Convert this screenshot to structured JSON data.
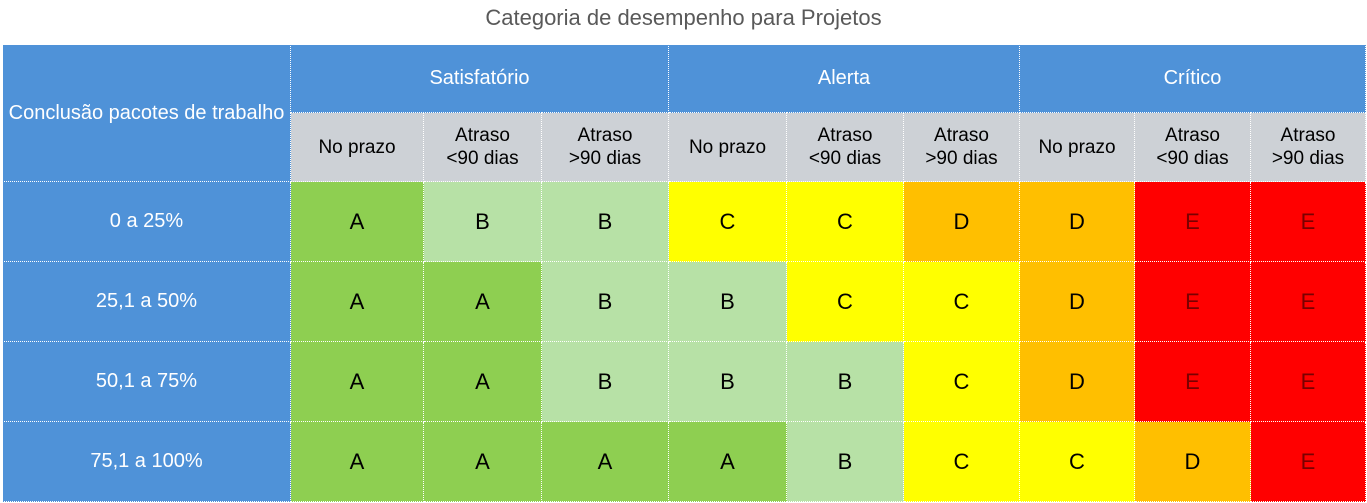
{
  "title": "Categoria de desempenho para Projetos",
  "table": {
    "corner_label": "Conclusão pacotes de trabalho",
    "groups": [
      "Satisfatório",
      "Alerta",
      "Crítico"
    ],
    "subheaders": [
      [
        "No prazo",
        ""
      ],
      [
        "Atraso",
        "<90 dias"
      ],
      [
        "Atraso",
        ">90 dias"
      ],
      [
        "No prazo",
        ""
      ],
      [
        "Atraso",
        "<90 dias"
      ],
      [
        "Atraso",
        ">90 dias"
      ],
      [
        "No prazo",
        ""
      ],
      [
        "Atraso",
        "<90 dias"
      ],
      [
        "Atraso",
        ">90 dias"
      ]
    ],
    "rows": [
      {
        "label": "0 a 25%",
        "cells": [
          "A",
          "B",
          "B",
          "C",
          "C",
          "D",
          "D",
          "E",
          "E"
        ]
      },
      {
        "label": "25,1 a 50%",
        "cells": [
          "A",
          "A",
          "B",
          "B",
          "C",
          "C",
          "D",
          "E",
          "E"
        ]
      },
      {
        "label": "50,1 a 75%",
        "cells": [
          "A",
          "A",
          "B",
          "B",
          "B",
          "C",
          "D",
          "E",
          "E"
        ]
      },
      {
        "label": "75,1 a 100%",
        "cells": [
          "A",
          "A",
          "A",
          "A",
          "B",
          "C",
          "C",
          "D",
          "E"
        ]
      }
    ],
    "colors": {
      "header_blue": "#4f92d8",
      "subheader_gray": "#cdd1d6",
      "A": "#8ecf51",
      "B": "#b7e1a6",
      "C": "#ffff00",
      "D": "#ffbf00",
      "E": "#ff0000"
    }
  }
}
